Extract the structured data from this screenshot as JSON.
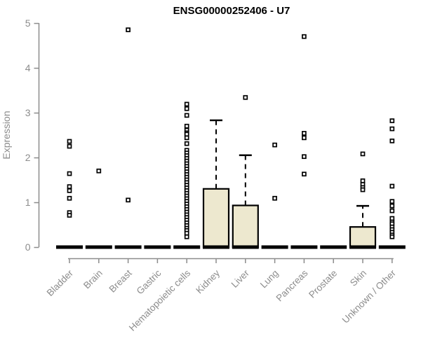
{
  "colors": {
    "box_fill": "#ede8cf",
    "box_stroke": "#000000",
    "median": "#000000",
    "whisker": "#000000",
    "outlier_stroke": "#000000",
    "outlier_fill": "#ffffff",
    "axis": "#8c8c8c",
    "tick_label": "#8c8c8c",
    "title": "#000000",
    "background": "#ffffff"
  },
  "chart_data": {
    "type": "boxplot",
    "title": "ENSG00000252406 - U7",
    "xlabel": "",
    "ylabel": "Expression",
    "ylim": [
      0,
      5
    ],
    "yticks": [
      0,
      1,
      2,
      3,
      4,
      5
    ],
    "grid": false,
    "legend": "none",
    "categories": [
      "Bladder",
      "Brain",
      "Breast",
      "Gastric",
      "Hematopoietic cells",
      "Kidney",
      "Liver",
      "Lung",
      "Pancreas",
      "Prostate",
      "Skin",
      "Unknown / Other"
    ],
    "series": [
      {
        "name": "Bladder",
        "q1": 0,
        "median": 0,
        "q3": 0,
        "whisker_low": 0,
        "whisker_high": 0,
        "outliers": [
          2.36,
          2.25,
          1.64,
          1.35,
          1.26,
          1.09,
          0.77,
          0.71
        ]
      },
      {
        "name": "Brain",
        "q1": 0,
        "median": 0,
        "q3": 0,
        "whisker_low": 0,
        "whisker_high": 0,
        "outliers": [
          1.7
        ]
      },
      {
        "name": "Breast",
        "q1": 0,
        "median": 0,
        "q3": 0,
        "whisker_low": 0,
        "whisker_high": 0,
        "outliers": [
          4.85,
          1.05
        ]
      },
      {
        "name": "Gastric",
        "q1": 0,
        "median": 0,
        "q3": 0,
        "whisker_low": 0,
        "whisker_high": 0,
        "outliers": []
      },
      {
        "name": "Hematopoietic cells",
        "q1": 0,
        "median": 0,
        "q3": 0,
        "whisker_low": 0,
        "whisker_high": 0,
        "outliers": [
          3.19,
          3.09,
          2.94,
          2.7,
          2.61,
          2.55,
          2.52,
          2.44,
          2.31,
          2.16,
          2.1,
          2.04,
          1.98,
          1.92,
          1.86,
          1.8,
          1.74,
          1.68,
          1.62,
          1.56,
          1.5,
          1.44,
          1.38,
          1.32,
          1.26,
          1.2,
          1.14,
          1.08,
          1.02,
          0.96,
          0.9,
          0.84,
          0.78,
          0.72,
          0.66,
          0.6,
          0.54,
          0.48,
          0.42,
          0.37,
          0.31,
          0.23
        ]
      },
      {
        "name": "Kidney",
        "q1": 0,
        "median": 0,
        "q3": 1.3,
        "whisker_low": 0,
        "whisker_high": 2.83,
        "outliers": []
      },
      {
        "name": "Liver",
        "q1": 0,
        "median": 0,
        "q3": 0.93,
        "whisker_low": 0,
        "whisker_high": 2.05,
        "outliers": [
          3.34
        ]
      },
      {
        "name": "Lung",
        "q1": 0,
        "median": 0,
        "q3": 0,
        "whisker_low": 0,
        "whisker_high": 0,
        "outliers": [
          2.28,
          1.09
        ]
      },
      {
        "name": "Pancreas",
        "q1": 0,
        "median": 0,
        "q3": 0,
        "whisker_low": 0,
        "whisker_high": 0,
        "outliers": [
          4.7,
          2.54,
          2.44,
          2.02,
          1.63
        ]
      },
      {
        "name": "Prostate",
        "q1": 0,
        "median": 0,
        "q3": 0,
        "whisker_low": 0,
        "whisker_high": 0,
        "outliers": []
      },
      {
        "name": "Skin",
        "q1": 0,
        "median": 0,
        "q3": 0.45,
        "whisker_low": 0,
        "whisker_high": 0.92,
        "outliers": [
          2.08,
          1.48,
          1.4,
          1.33,
          1.28
        ]
      },
      {
        "name": "Unknown / Other",
        "q1": 0,
        "median": 0,
        "q3": 0,
        "whisker_low": 0,
        "whisker_high": 0,
        "outliers": [
          2.82,
          2.64,
          2.37,
          1.36,
          1.02,
          0.92,
          0.81,
          0.64,
          0.56,
          0.52,
          0.45,
          0.39,
          0.33,
          0.27,
          0.23
        ]
      }
    ]
  }
}
